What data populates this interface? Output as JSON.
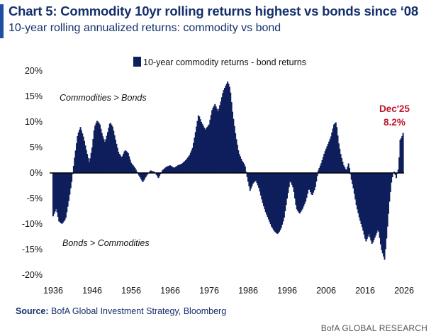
{
  "header": {
    "title": "Chart 5: Commodity 10yr rolling returns highest vs bonds since ‘08",
    "subtitle": "10-year rolling annualized returns: commodity vs bond"
  },
  "footer": {
    "source_label": "Source:",
    "source_text": "BofA Global Investment Strategy, Bloomberg",
    "brand": "BofA GLOBAL RESEARCH"
  },
  "colors": {
    "bars": "#0e1f5c",
    "accent": "#c0142a",
    "title": "#14306b"
  },
  "chart_data": {
    "type": "bar",
    "legend": "10-year commodity returns - bond returns",
    "legend_position": "top-center",
    "grid": false,
    "ylim": [
      -20,
      20
    ],
    "yticks": [
      20,
      15,
      10,
      5,
      0,
      -5,
      -10,
      -15,
      -20
    ],
    "ytick_labels": [
      "20%",
      "15%",
      "10%",
      "5%",
      "0%",
      "-5%",
      "-10%",
      "-15%",
      "-20%"
    ],
    "xlim": [
      1936,
      2026
    ],
    "xticks": [
      1936,
      1946,
      1956,
      1966,
      1976,
      1986,
      1996,
      2006,
      2016,
      2026
    ],
    "annotations": [
      {
        "text": "Commodities > Bonds"
      },
      {
        "text": "Bonds > Commodities"
      }
    ],
    "last_point": {
      "date_label": "Dec'25",
      "value_label": "8.2%",
      "x": 2025.9,
      "y": 8.2
    },
    "series": [
      {
        "name": "10-year commodity returns - bond returns",
        "points": [
          [
            1936.0,
            -8.5
          ],
          [
            1936.8,
            -7.0
          ],
          [
            1937.5,
            -9.5
          ],
          [
            1938.3,
            -10.0
          ],
          [
            1939.2,
            -9.0
          ],
          [
            1940.0,
            -5.5
          ],
          [
            1940.8,
            -1.5
          ],
          [
            1941.5,
            3.0
          ],
          [
            1942.3,
            7.5
          ],
          [
            1943.0,
            9.0
          ],
          [
            1943.8,
            7.0
          ],
          [
            1944.5,
            4.5
          ],
          [
            1945.3,
            2.0
          ],
          [
            1946.0,
            5.0
          ],
          [
            1946.6,
            9.0
          ],
          [
            1947.3,
            10.3
          ],
          [
            1948.0,
            9.5
          ],
          [
            1948.6,
            7.5
          ],
          [
            1949.3,
            6.0
          ],
          [
            1950.0,
            8.0
          ],
          [
            1950.6,
            10.0
          ],
          [
            1951.3,
            9.0
          ],
          [
            1952.0,
            6.5
          ],
          [
            1952.8,
            4.0
          ],
          [
            1953.6,
            3.0
          ],
          [
            1954.4,
            4.5
          ],
          [
            1955.2,
            4.0
          ],
          [
            1956.0,
            2.0
          ],
          [
            1957.0,
            1.0
          ],
          [
            1958.0,
            -0.5
          ],
          [
            1959.0,
            -1.8
          ],
          [
            1960.0,
            -0.5
          ],
          [
            1961.0,
            0.5
          ],
          [
            1962.0,
            0.2
          ],
          [
            1963.0,
            -1.0
          ],
          [
            1964.0,
            0.5
          ],
          [
            1965.0,
            1.2
          ],
          [
            1966.0,
            1.5
          ],
          [
            1967.0,
            1.0
          ],
          [
            1968.0,
            1.5
          ],
          [
            1969.0,
            1.8
          ],
          [
            1970.0,
            2.5
          ],
          [
            1971.0,
            3.5
          ],
          [
            1971.8,
            5.0
          ],
          [
            1972.5,
            8.0
          ],
          [
            1973.3,
            11.5
          ],
          [
            1974.0,
            10.0
          ],
          [
            1975.0,
            8.5
          ],
          [
            1976.0,
            9.5
          ],
          [
            1976.8,
            12.5
          ],
          [
            1977.5,
            13.5
          ],
          [
            1978.3,
            12.0
          ],
          [
            1979.0,
            14.0
          ],
          [
            1979.6,
            16.0
          ],
          [
            1980.2,
            17.0
          ],
          [
            1980.8,
            18.0
          ],
          [
            1981.4,
            16.5
          ],
          [
            1982.0,
            12.0
          ],
          [
            1982.8,
            7.5
          ],
          [
            1983.6,
            4.0
          ],
          [
            1984.4,
            2.5
          ],
          [
            1985.2,
            1.5
          ],
          [
            1985.8,
            -1.0
          ],
          [
            1986.5,
            -3.5
          ],
          [
            1987.3,
            -2.0
          ],
          [
            1988.0,
            -1.5
          ],
          [
            1988.8,
            -3.0
          ],
          [
            1989.6,
            -5.5
          ],
          [
            1990.4,
            -7.5
          ],
          [
            1991.2,
            -9.0
          ],
          [
            1992.0,
            -10.5
          ],
          [
            1992.8,
            -11.5
          ],
          [
            1993.6,
            -12.0
          ],
          [
            1994.4,
            -11.0
          ],
          [
            1995.2,
            -9.0
          ],
          [
            1996.0,
            -5.0
          ],
          [
            1996.8,
            -1.5
          ],
          [
            1997.6,
            -3.0
          ],
          [
            1998.4,
            -7.0
          ],
          [
            1999.2,
            -8.0
          ],
          [
            2000.0,
            -7.0
          ],
          [
            2000.8,
            -5.5
          ],
          [
            2001.6,
            -3.0
          ],
          [
            2002.4,
            -4.5
          ],
          [
            2003.2,
            -3.0
          ],
          [
            2004.0,
            0.5
          ],
          [
            2004.8,
            2.0
          ],
          [
            2005.6,
            4.0
          ],
          [
            2006.4,
            5.5
          ],
          [
            2007.2,
            7.0
          ],
          [
            2008.0,
            9.5
          ],
          [
            2008.6,
            10.0
          ],
          [
            2009.2,
            6.0
          ],
          [
            2009.8,
            3.5
          ],
          [
            2010.5,
            1.5
          ],
          [
            2011.2,
            0.5
          ],
          [
            2011.8,
            2.0
          ],
          [
            2012.4,
            -1.0
          ],
          [
            2013.0,
            -3.0
          ],
          [
            2013.8,
            -6.5
          ],
          [
            2014.6,
            -9.0
          ],
          [
            2015.4,
            -11.0
          ],
          [
            2016.2,
            -13.5
          ],
          [
            2017.0,
            -12.0
          ],
          [
            2017.8,
            -14.0
          ],
          [
            2018.6,
            -12.5
          ],
          [
            2019.4,
            -11.0
          ],
          [
            2020.2,
            -15.0
          ],
          [
            2021.0,
            -17.0
          ],
          [
            2021.6,
            -12.0
          ],
          [
            2022.2,
            -6.0
          ],
          [
            2022.8,
            -1.5
          ],
          [
            2023.4,
            0.5
          ],
          [
            2024.0,
            -1.0
          ],
          [
            2024.6,
            1.0
          ],
          [
            2025.0,
            6.5
          ],
          [
            2025.4,
            7.0
          ],
          [
            2025.9,
            8.2
          ]
        ]
      }
    ]
  }
}
